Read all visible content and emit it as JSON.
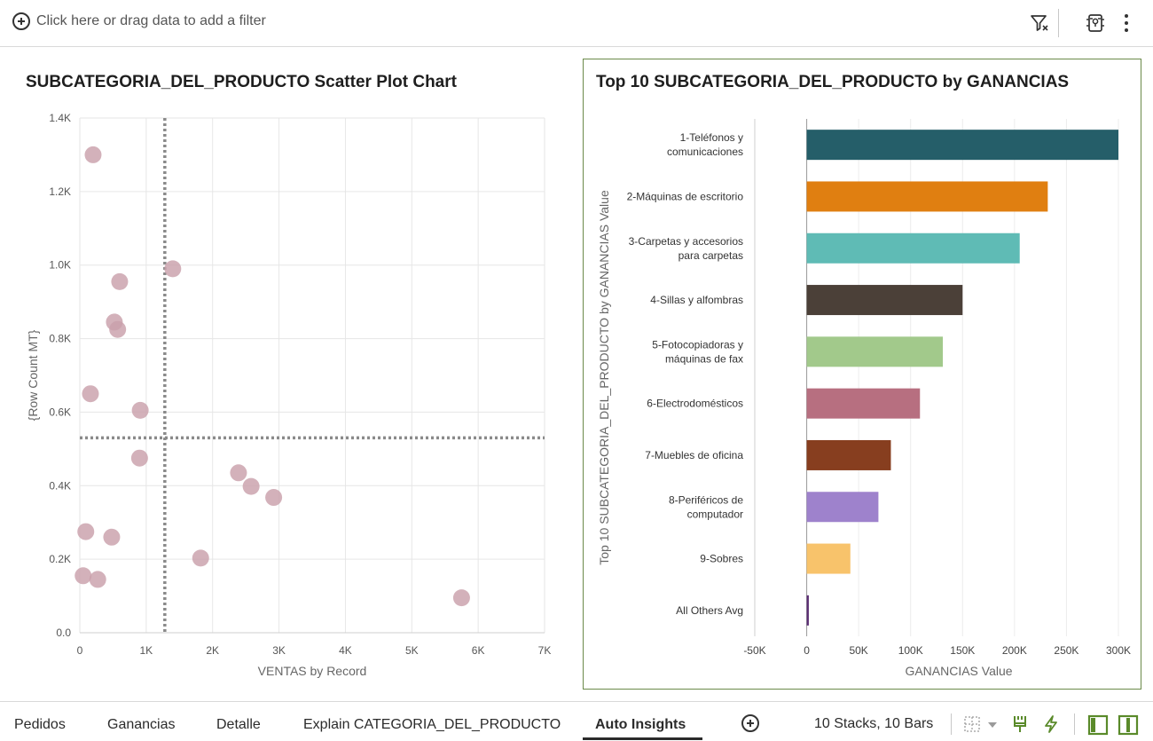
{
  "filter_bar": {
    "add_filter_text": "Click here or drag data to add a filter",
    "icons": [
      "add-circle-icon",
      "filter-icon",
      "insights-icon",
      "more-vertical-icon"
    ]
  },
  "colors": {
    "scatter_point": "#c9a0ab",
    "reference_line": "#8a8a8a",
    "panel_border": "#6b8a4a",
    "accent_green": "#5a8a2a"
  },
  "chart_data": [
    {
      "type": "scatter",
      "title": "SUBCATEGORIA_DEL_PRODUCTO Scatter Plot Chart",
      "xlabel": "VENTAS by Record",
      "ylabel": "{Row Count MT}",
      "xlim": [
        0,
        7000
      ],
      "ylim": [
        0,
        1400
      ],
      "x_ticks": [
        "0",
        "1K",
        "2K",
        "3K",
        "4K",
        "5K",
        "6K",
        "7K"
      ],
      "y_ticks": [
        "0.0",
        "0.2K",
        "0.4K",
        "0.6K",
        "0.8K",
        "1.0K",
        "1.2K",
        "1.4K"
      ],
      "grid": true,
      "reference_lines": {
        "x": 1280,
        "y": 530
      },
      "points": [
        {
          "x": 200,
          "y": 1300
        },
        {
          "x": 1400,
          "y": 990
        },
        {
          "x": 600,
          "y": 955
        },
        {
          "x": 520,
          "y": 845
        },
        {
          "x": 570,
          "y": 825
        },
        {
          "x": 160,
          "y": 650
        },
        {
          "x": 910,
          "y": 605
        },
        {
          "x": 900,
          "y": 475
        },
        {
          "x": 2390,
          "y": 435
        },
        {
          "x": 2580,
          "y": 398
        },
        {
          "x": 2920,
          "y": 368
        },
        {
          "x": 90,
          "y": 275
        },
        {
          "x": 480,
          "y": 260
        },
        {
          "x": 1820,
          "y": 203
        },
        {
          "x": 50,
          "y": 155
        },
        {
          "x": 270,
          "y": 145
        },
        {
          "x": 5750,
          "y": 95
        }
      ]
    },
    {
      "type": "bar",
      "orientation": "horizontal",
      "title": "Top 10 SUBCATEGORIA_DEL_PRODUCTO by GANANCIAS",
      "xlabel": "GANANCIAS Value",
      "ylabel": "Top 10 SUBCATEGORIA_DEL_PRODUCTO by GANANCIAS Value",
      "xlim": [
        -50000,
        300000
      ],
      "x_ticks": [
        "-50K",
        "0",
        "50K",
        "100K",
        "150K",
        "200K",
        "250K",
        "300K"
      ],
      "grid": true,
      "categories": [
        [
          "1-Teléfonos y",
          "comunicaciones"
        ],
        [
          "2-Máquinas de escritorio"
        ],
        [
          "3-Carpetas y accesorios",
          "para carpetas"
        ],
        [
          "4-Sillas y alfombras"
        ],
        [
          "5-Fotocopiadoras y",
          "máquinas de fax"
        ],
        [
          "6-Electrodomésticos"
        ],
        [
          "7-Muebles de oficina"
        ],
        [
          "8-Periféricos de",
          "computador"
        ],
        [
          "9-Sobres"
        ],
        [
          "All Others Avg"
        ]
      ],
      "values": [
        300000,
        232000,
        205000,
        150000,
        131000,
        109000,
        81000,
        69000,
        42000,
        2000
      ],
      "bar_colors": [
        "#255e69",
        "#e07f11",
        "#5fbbb5",
        "#4b4038",
        "#a2c98b",
        "#b76f80",
        "#873e1f",
        "#9e82cc",
        "#f8c36b",
        "#5a2d73"
      ]
    }
  ],
  "tabs": [
    {
      "label": "Pedidos"
    },
    {
      "label": "Ganancias"
    },
    {
      "label": "Detalle"
    },
    {
      "label": "Explain CATEGORIA_DEL_PRODUCTO"
    },
    {
      "label": "Auto Insights",
      "active": true
    }
  ],
  "status_bar": {
    "summary": "10 Stacks, 10 Bars",
    "icons": [
      "grid-layout-icon",
      "chevron-down-icon",
      "brush-icon",
      "lightning-icon",
      "left-panel-icon",
      "right-panel-icon"
    ]
  }
}
